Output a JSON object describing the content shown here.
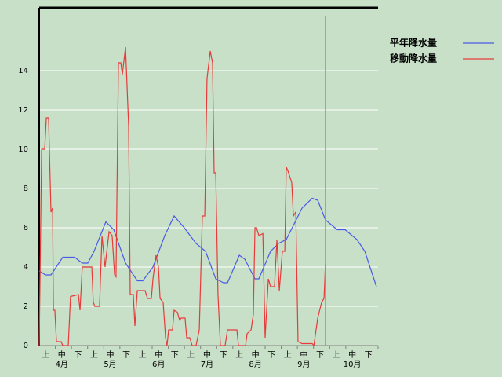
{
  "chart_data": {
    "type": "line",
    "xlim": [
      0,
      21
    ],
    "ylim": [
      0,
      17.2
    ],
    "yticks": [
      0,
      2,
      4,
      6,
      8,
      10,
      12,
      14
    ],
    "grid": true,
    "xtick_labels": [
      "上",
      "中",
      "下",
      "上",
      "中",
      "下",
      "上",
      "中",
      "下",
      "上",
      "中",
      "下",
      "上",
      "中",
      "下",
      "上",
      "中",
      "下",
      "上",
      "中",
      "下"
    ],
    "month_labels": [
      "4月",
      "5月",
      "6月",
      "7月",
      "8月",
      "9月",
      "10月"
    ],
    "marker_x": 17.74,
    "marker_color": "#dd66dd",
    "legend": "top-right",
    "series": [
      {
        "name": "平年降水量",
        "color": "#4a5ae8",
        "x": [
          0,
          0.39,
          0.73,
          1.46,
          2.19,
          2.67,
          3.01,
          3.4,
          4.13,
          4.62,
          5.35,
          6.08,
          6.42,
          7.05,
          7.78,
          8.36,
          8.99,
          9.72,
          10.31,
          10.94,
          11.42,
          11.67,
          12.4,
          12.74,
          13.37,
          13.61,
          14.34,
          14.83,
          15.31,
          15.8,
          16.29,
          16.92,
          17.26,
          17.74,
          18.47,
          18.96,
          19.69,
          20.18,
          20.9
        ],
        "values": [
          3.8,
          3.6,
          3.6,
          4.5,
          4.5,
          4.2,
          4.2,
          4.8,
          6.3,
          5.9,
          4.2,
          3.3,
          3.3,
          4.0,
          5.6,
          6.6,
          6.0,
          5.2,
          4.8,
          3.4,
          3.2,
          3.2,
          4.6,
          4.4,
          3.4,
          3.4,
          4.8,
          5.2,
          5.4,
          6.2,
          7.0,
          7.5,
          7.4,
          6.4,
          5.9,
          5.9,
          5.4,
          4.8,
          3.0
        ]
      },
      {
        "name": "移動降水量",
        "color": "#e83a3a",
        "x": [
          0,
          0.15,
          0.34,
          0.44,
          0.58,
          0.73,
          0.83,
          0.88,
          0.97,
          1.07,
          1.36,
          1.46,
          1.8,
          1.94,
          2.43,
          2.53,
          2.67,
          3.26,
          3.35,
          3.45,
          3.74,
          3.89,
          4.08,
          4.33,
          4.52,
          4.67,
          4.76,
          4.91,
          5.06,
          5.15,
          5.35,
          5.54,
          5.64,
          5.83,
          5.93,
          6.08,
          6.56,
          6.71,
          6.95,
          7.05,
          7.24,
          7.39,
          7.49,
          7.68,
          7.83,
          7.92,
          8.02,
          8.26,
          8.36,
          8.56,
          8.7,
          8.8,
          9.04,
          9.14,
          9.33,
          9.48,
          9.72,
          9.92,
          10.11,
          10.26,
          10.4,
          10.6,
          10.74,
          10.84,
          10.94,
          11.08,
          11.23,
          11.52,
          11.67,
          12.25,
          12.35,
          12.79,
          12.88,
          13.13,
          13.27,
          13.37,
          13.47,
          13.61,
          13.86,
          14.0,
          14.2,
          14.34,
          14.58,
          14.73,
          14.88,
          15.07,
          15.22,
          15.31,
          15.41,
          15.65,
          15.75,
          15.9,
          16.04,
          16.29,
          16.92,
          17.02,
          17.26,
          17.5,
          17.65,
          17.74
        ],
        "values": [
          0,
          10,
          10,
          11.6,
          11.6,
          6.8,
          7,
          1.8,
          1.8,
          0.2,
          0.2,
          0,
          0,
          2.5,
          2.6,
          1.8,
          4,
          4,
          2.2,
          2,
          2,
          5.6,
          4,
          5.8,
          5.6,
          3.6,
          3.5,
          14.4,
          14.4,
          13.8,
          15.2,
          11.2,
          2.6,
          2.6,
          1,
          2.8,
          2.8,
          2.4,
          2.4,
          3.4,
          4.6,
          4,
          2.4,
          2.2,
          0.4,
          0,
          0.8,
          0.8,
          1.8,
          1.7,
          1.3,
          1.4,
          1.4,
          0.4,
          0.4,
          0,
          0,
          0.8,
          6.6,
          6.6,
          13.6,
          15,
          14.4,
          8.8,
          8.8,
          2.6,
          0,
          0,
          0.8,
          0.8,
          0,
          0,
          0.6,
          0.8,
          1.6,
          6,
          6,
          5.6,
          5.7,
          0.4,
          3.4,
          3,
          3,
          5.4,
          2.8,
          4.8,
          4.8,
          9.1,
          8.9,
          8.3,
          6.6,
          6.8,
          0.2,
          0.1,
          0.1,
          0,
          1.4,
          2.2,
          2.4,
          4.2
        ]
      }
    ]
  }
}
